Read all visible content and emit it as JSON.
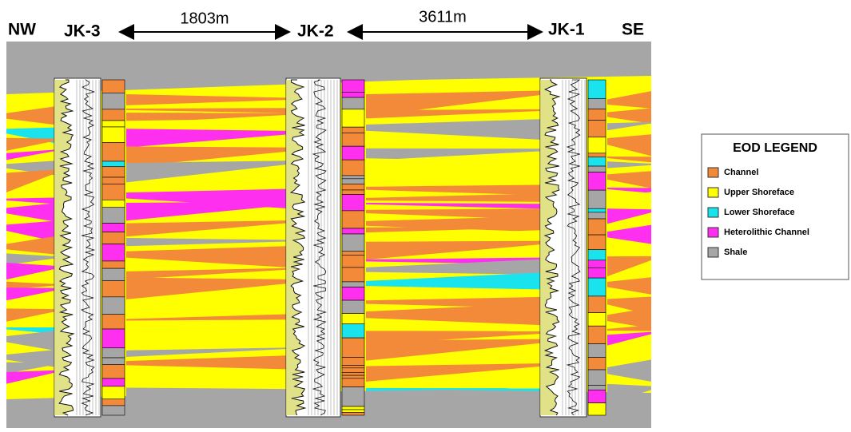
{
  "header": {
    "left": "NW",
    "right": "SE"
  },
  "wells": [
    {
      "label": "JK-3"
    },
    {
      "label": "JK-2"
    },
    {
      "label": "JK-1"
    }
  ],
  "distances": [
    "1803m",
    "3611m"
  ],
  "legend": {
    "title": "EOD LEGEND",
    "items": [
      {
        "label": "Channel",
        "color": "#f28a3a"
      },
      {
        "label": "Upper Shoreface",
        "color": "#ffff00"
      },
      {
        "label": "Lower Shoreface",
        "color": "#19e4ee"
      },
      {
        "label": "Heterolithic Channel",
        "color": "#ff2ff0"
      },
      {
        "label": "Shale",
        "color": "#a6a6a6"
      }
    ]
  }
}
